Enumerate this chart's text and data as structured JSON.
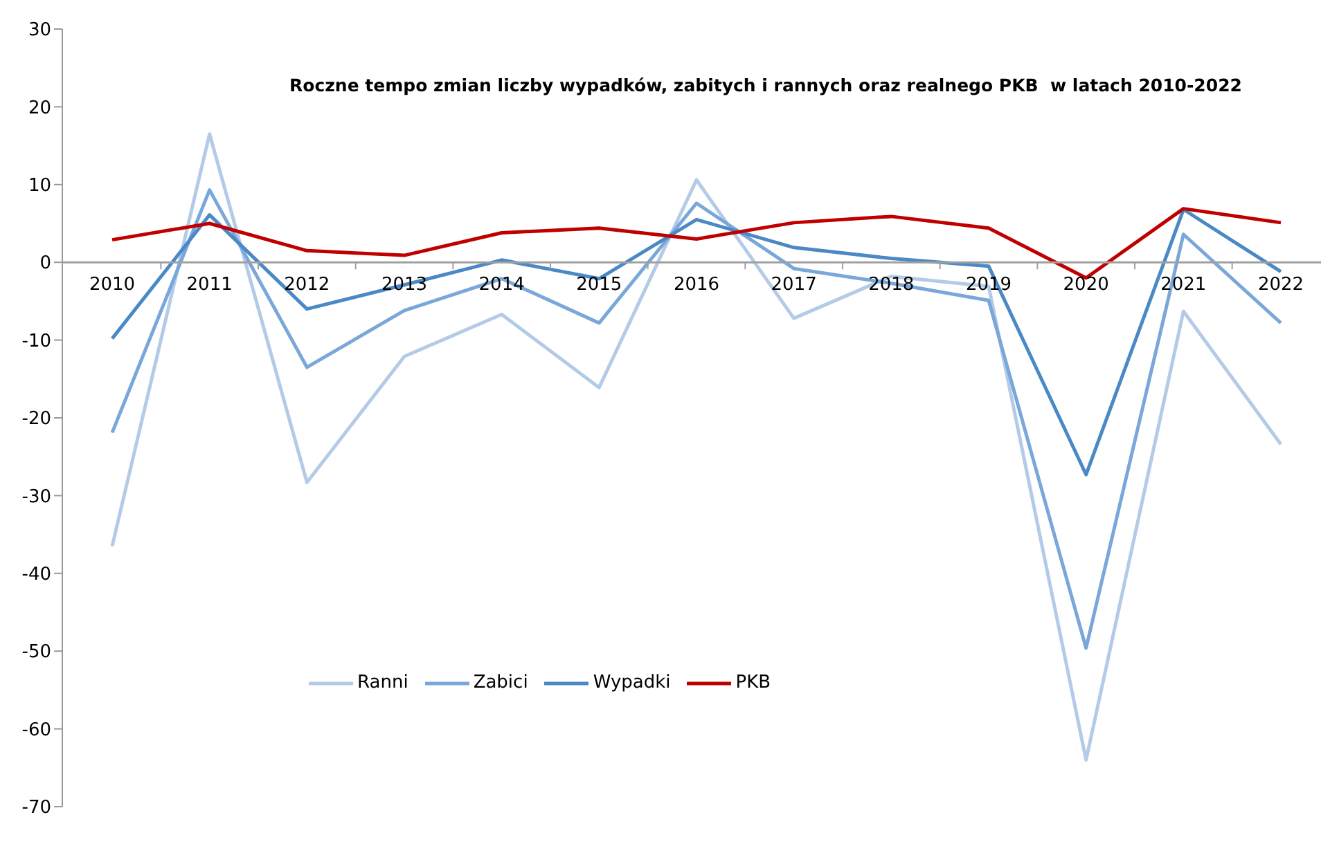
{
  "chart_data": {
    "type": "line",
    "title": "Roczne tempo zmian liczby wypadków, zabitych i rannych oraz realnego PKB  w latach 2010-2022",
    "categories": [
      "2010",
      "2011",
      "2012",
      "2013",
      "2014",
      "2015",
      "2016",
      "2017",
      "2018",
      "2019",
      "2020",
      "2021",
      "2022"
    ],
    "series": [
      {
        "name": "Ranni",
        "color": "#b4cbe8",
        "values": [
          -36.5,
          16.5,
          -28.3,
          -12.1,
          -6.7,
          -16.1,
          10.6,
          -7.2,
          -1.8,
          -3.1,
          -64.0,
          -6.3,
          -23.4
        ]
      },
      {
        "name": "Zabici",
        "color": "#7aa7d9",
        "values": [
          -21.9,
          9.3,
          -13.5,
          -6.2,
          -2.1,
          -7.8,
          7.6,
          -0.8,
          -2.7,
          -4.9,
          -49.6,
          3.6,
          -7.8
        ]
      },
      {
        "name": "Wypadki",
        "color": "#4a89c6",
        "values": [
          -9.8,
          6.1,
          -6.0,
          -2.9,
          0.3,
          -2.1,
          5.5,
          1.9,
          0.5,
          -0.5,
          -27.3,
          6.8,
          -1.2
        ]
      },
      {
        "name": "PKB",
        "color": "#c00000",
        "values": [
          2.9,
          5.0,
          1.5,
          0.9,
          3.8,
          4.4,
          3.0,
          5.1,
          5.9,
          4.4,
          -2.0,
          6.9,
          5.1
        ]
      }
    ],
    "ylim": [
      -70,
      30
    ],
    "yticks": [
      -70,
      -60,
      -50,
      -40,
      -30,
      -20,
      -10,
      0,
      10,
      20,
      30
    ],
    "grid": false,
    "legend": "bottom left",
    "marker": "none",
    "line_style": "solid"
  }
}
